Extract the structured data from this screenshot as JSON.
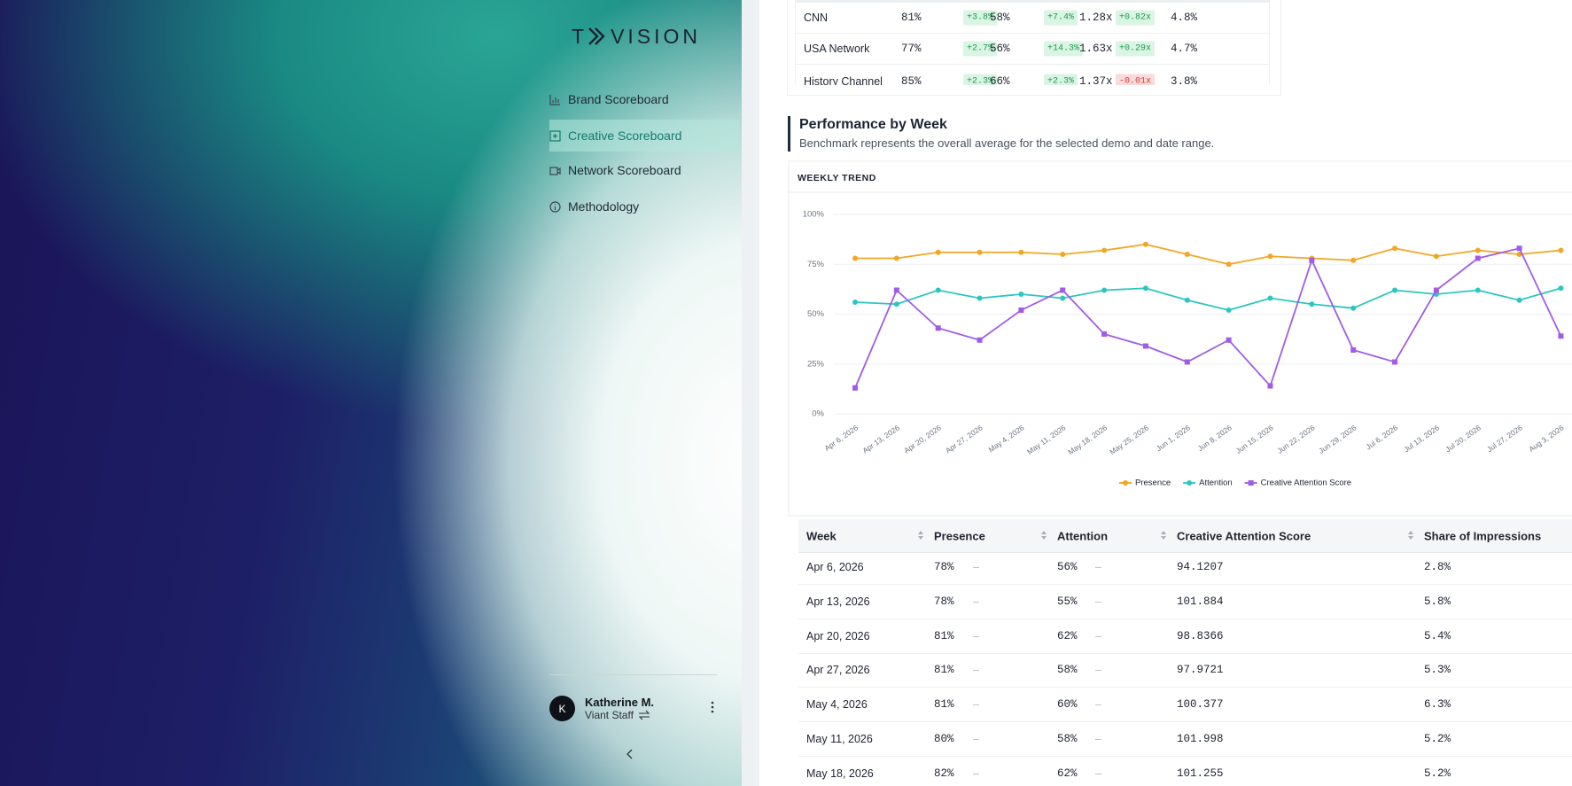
{
  "sidebar": {
    "logo_left": "T",
    "logo_right": "VISION",
    "nav": [
      "Brand Scoreboard",
      "Creative Scoreboard",
      "Network Scoreboard",
      "Methodology"
    ],
    "user": {
      "initial": "K",
      "name": "Katherine M.",
      "role": "Viant Staff"
    }
  },
  "top_table": {
    "rows": [
      [
        "CNN",
        "81%",
        "+3.8%",
        "58%",
        "+7.4%",
        "1.28x",
        "+0.82x",
        "4.8%"
      ],
      [
        "USA Network",
        "77%",
        "+2.7%",
        "56%",
        "+14.3%",
        "1.63x",
        "+0.29x",
        "4.7%"
      ],
      [
        "History Channel",
        "85%",
        "+2.3%",
        "66%",
        "+2.3%",
        "1.37x",
        "-0.01x",
        "3.8%"
      ]
    ]
  },
  "section": {
    "title": "Performance by Week",
    "subtitle": "Benchmark represents the overall average for the selected demo and date range."
  },
  "chart_data": {
    "type": "line",
    "title": "WEEKLY TREND",
    "x": [
      "Apr 6, 2026",
      "Apr 13, 2026",
      "Apr 20, 2026",
      "Apr 27, 2026",
      "May 4, 2026",
      "May 11, 2026",
      "May 18, 2026",
      "May 25, 2026",
      "Jun 1, 2026",
      "Jun 8, 2026",
      "Jun 15, 2026",
      "Jun 22, 2026",
      "Jun 29, 2026",
      "Jul 6, 2026",
      "Jul 13, 2026",
      "Jul 20, 2026",
      "Jul 27, 2026",
      "Aug 3, 2026"
    ],
    "series": [
      {
        "name": "Presence",
        "color": "#f2a623",
        "marker": "circle",
        "values": [
          78,
          78,
          81,
          81,
          81,
          80,
          82,
          85,
          80,
          75,
          79,
          78,
          77,
          83,
          79,
          82,
          80,
          82
        ]
      },
      {
        "name": "Attention",
        "color": "#2cc6c0",
        "marker": "circle",
        "values": [
          56,
          55,
          62,
          58,
          60,
          58,
          62,
          63,
          57,
          52,
          58,
          55,
          53,
          62,
          60,
          62,
          57,
          63
        ]
      },
      {
        "name": "Creative Attention Score",
        "color": "#a05ce6",
        "marker": "square",
        "values": [
          13,
          62,
          43,
          37,
          52,
          62,
          40,
          34,
          26,
          37,
          14,
          77,
          32,
          26,
          62,
          78,
          83,
          39
        ]
      }
    ],
    "ylim": [
      0,
      100
    ],
    "yticks": [
      {
        "value": 0,
        "label": "0%"
      },
      {
        "value": 25,
        "label": "25%"
      },
      {
        "value": 50,
        "label": "50%"
      },
      {
        "value": 75,
        "label": "75%"
      },
      {
        "value": 100,
        "label": "100%"
      }
    ],
    "grid": true,
    "legend": "bottom"
  },
  "table": {
    "headers": [
      "Week",
      "Presence",
      "Attention",
      "Creative Attention Score",
      "Share of Impressions"
    ],
    "rows": [
      {
        "week": "Apr 6, 2026",
        "presence": "78%",
        "presence_delta": "–",
        "attention": "56%",
        "attention_delta": "–",
        "cas": "94.1207",
        "share": "2.8%"
      },
      {
        "week": "Apr 13, 2026",
        "presence": "78%",
        "presence_delta": "–",
        "attention": "55%",
        "attention_delta": "–",
        "cas": "101.884",
        "share": "5.8%"
      },
      {
        "week": "Apr 20, 2026",
        "presence": "81%",
        "presence_delta": "–",
        "attention": "62%",
        "attention_delta": "–",
        "cas": "98.8366",
        "share": "5.4%"
      },
      {
        "week": "Apr 27, 2026",
        "presence": "81%",
        "presence_delta": "–",
        "attention": "58%",
        "attention_delta": "–",
        "cas": "97.9721",
        "share": "5.3%"
      },
      {
        "week": "May 4, 2026",
        "presence": "81%",
        "presence_delta": "–",
        "attention": "60%",
        "attention_delta": "–",
        "cas": "100.377",
        "share": "6.3%"
      },
      {
        "week": "May 11, 2026",
        "presence": "80%",
        "presence_delta": "–",
        "attention": "58%",
        "attention_delta": "–",
        "cas": "101.998",
        "share": "5.2%"
      },
      {
        "week": "May 18, 2026",
        "presence": "82%",
        "presence_delta": "–",
        "attention": "62%",
        "attention_delta": "–",
        "cas": "101.255",
        "share": "5.2%"
      }
    ]
  }
}
